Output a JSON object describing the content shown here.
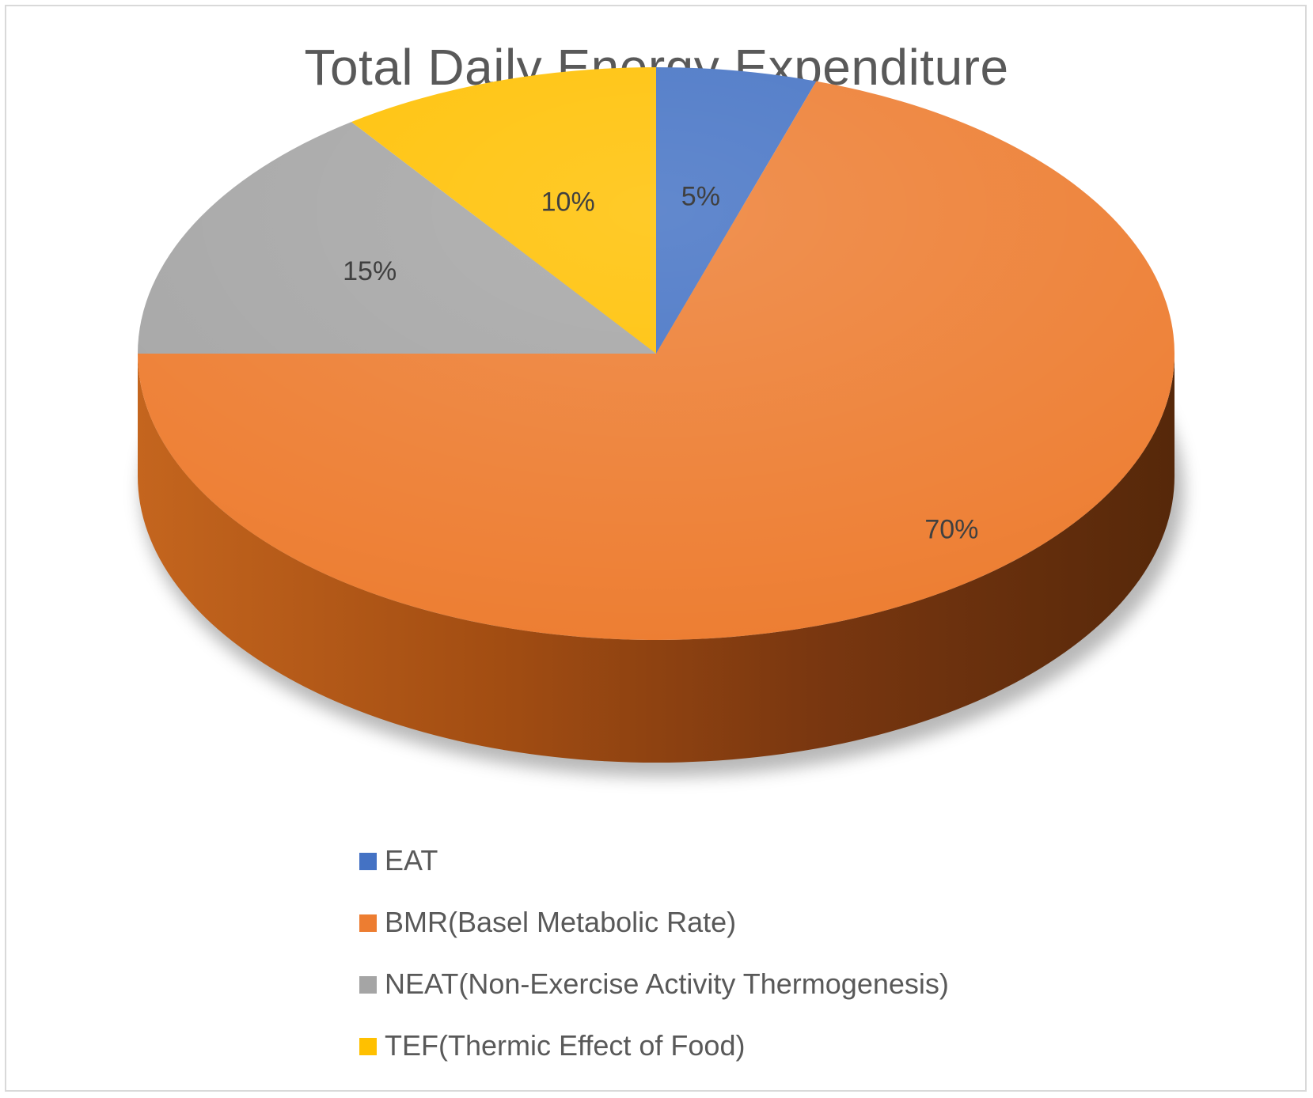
{
  "chart_data": {
    "type": "pie",
    "title": "Total Daily Energy Expenditure",
    "slices": [
      {
        "label": "EAT",
        "value": 5,
        "data_label": "5%",
        "color": "#4472c4"
      },
      {
        "label": "BMR(Basel Metabolic Rate)",
        "value": 70,
        "data_label": "70%",
        "color": "#ed7d31"
      },
      {
        "label": "NEAT(Non-Exercise Activity Thermogenesis)",
        "value": 15,
        "data_label": "15%",
        "color": "#a5a5a5"
      },
      {
        "label": "TEF(Thermic Effect of Food)",
        "value": 10,
        "data_label": "10%",
        "color": "#ffc000"
      }
    ],
    "legend_position": "bottom",
    "style": "3d"
  }
}
